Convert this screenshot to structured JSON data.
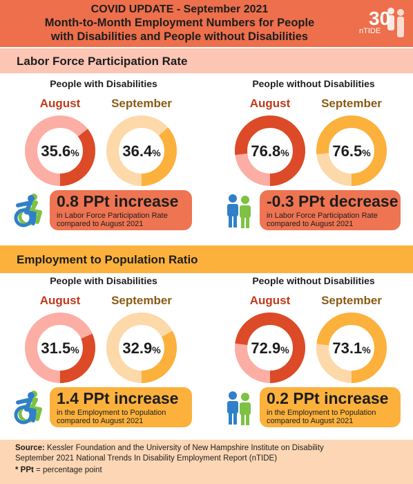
{
  "header": {
    "line1": "COVID UPDATE - September 2021",
    "line2": "Month-to-Month Employment Numbers for People",
    "line3": "with Disabilities and People without Disabilities",
    "logo_text": "nTIDE",
    "logo_number": "30"
  },
  "sections": [
    {
      "title": "Labor Force Participation Rate",
      "groups": [
        {
          "title": "People with Disabilities",
          "aug_label": "August",
          "sep_label": "September",
          "aug_value": "35.6",
          "sep_value": "36.4",
          "change": "0.8 PPt increase",
          "desc1": "in Labor Force Participation Rate",
          "desc2": "compared to August 2021",
          "icon": "wheelchair-icon"
        },
        {
          "title": "People without Disabilities",
          "aug_label": "August",
          "sep_label": "September",
          "aug_value": "76.8",
          "sep_value": "76.5",
          "change": "-0.3 PPt decrease",
          "desc1": "in Labor Force Participation Rate",
          "desc2": "compared to August 2021",
          "icon": "people-icon"
        }
      ]
    },
    {
      "title": "Employment to Population Ratio",
      "groups": [
        {
          "title": "People with Disabilities",
          "aug_label": "August",
          "sep_label": "September",
          "aug_value": "31.5",
          "sep_value": "32.9",
          "change": "1.4 PPt increase",
          "desc1": "in the Employment to Population",
          "desc2": "compared to August 2021",
          "icon": "wheelchair-icon"
        },
        {
          "title": "People without Disabilities",
          "aug_label": "August",
          "sep_label": "September",
          "aug_value": "72.9",
          "sep_value": "73.1",
          "change": "0.2 PPt increase",
          "desc1": "in the Employment to Population",
          "desc2": "compared to August 2021",
          "icon": "people-icon"
        }
      ]
    }
  ],
  "pct_sign": "%",
  "footer": {
    "source_label": "Source:",
    "source_text": "Kessler Foundation and the University of New Hampshire Institute on Disability",
    "source_line2": "September 2021 National Trends In Disability Employment Report (nTIDE)",
    "note_label": "* PPt",
    "note_text": "= percentage point"
  },
  "colors": {
    "header": "#ed6f4c",
    "band1": "#fcc5b4",
    "band2": "#fbb13c",
    "aug_fill": "#dc4a27",
    "aug_track": "#fcaea4",
    "sep_fill": "#fbb13c",
    "sep_track": "#fdd8a8",
    "aug_text": "#c0391b",
    "sep_text": "#8a5a14",
    "callout1": "#ee7452",
    "callout2": "#fbb13c"
  },
  "chart_data": {
    "type": "pie",
    "unit": "%",
    "charts": [
      {
        "section": "Labor Force Participation Rate",
        "group": "People with Disabilities",
        "August": 35.6,
        "September": 36.4,
        "change": 0.8
      },
      {
        "section": "Labor Force Participation Rate",
        "group": "People without Disabilities",
        "August": 76.8,
        "September": 76.5,
        "change": -0.3
      },
      {
        "section": "Employment to Population Ratio",
        "group": "People with Disabilities",
        "August": 31.5,
        "September": 32.9,
        "change": 1.4
      },
      {
        "section": "Employment to Population Ratio",
        "group": "People without Disabilities",
        "August": 72.9,
        "September": 73.1,
        "change": 0.2
      }
    ]
  }
}
